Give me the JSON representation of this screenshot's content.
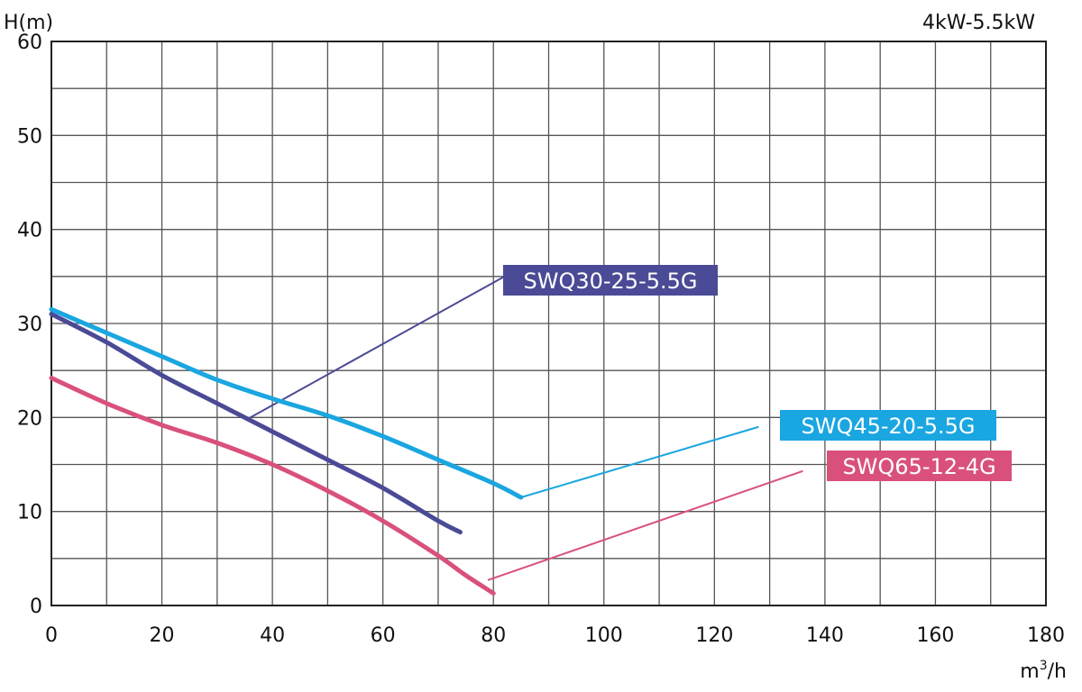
{
  "chart_data": {
    "type": "line",
    "title": "4kW-5.5kW",
    "ylabel": "H(m)",
    "xlabel_base": "m",
    "xlabel_sup": "3",
    "xlabel_tail": "/h",
    "xlim": [
      0,
      180
    ],
    "ylim": [
      0,
      60
    ],
    "x_ticks": [
      0,
      20,
      40,
      60,
      80,
      100,
      120,
      140,
      160,
      180
    ],
    "y_ticks": [
      0,
      10,
      20,
      30,
      40,
      50,
      60
    ],
    "grid": true,
    "series": [
      {
        "name": "SWQ30-25-5.5G",
        "color": "#4a4a96",
        "x": [
          0,
          10,
          20,
          30,
          40,
          50,
          60,
          70,
          74
        ],
        "y": [
          31,
          28,
          24.5,
          21.5,
          18.5,
          15.5,
          12.5,
          9,
          7.8
        ],
        "leader": {
          "from": [
            36,
            20
          ],
          "to": [
            82,
            35
          ]
        }
      },
      {
        "name": "SWQ45-20-5.5G",
        "color": "#1aa6e0",
        "x": [
          0,
          10,
          20,
          30,
          40,
          50,
          60,
          70,
          80,
          85
        ],
        "y": [
          31.5,
          29,
          26.5,
          24,
          22,
          20.2,
          18,
          15.5,
          13,
          11.5
        ],
        "leader": {
          "from": [
            85,
            11.5
          ],
          "to": [
            128,
            19
          ]
        }
      },
      {
        "name": "SWQ65-12-4G",
        "color": "#d9517a",
        "x": [
          0,
          10,
          20,
          30,
          40,
          50,
          60,
          70,
          75,
          80
        ],
        "y": [
          24.2,
          21.5,
          19.2,
          17.3,
          15,
          12.2,
          9,
          5.3,
          3.2,
          1.3
        ],
        "leader": {
          "from": [
            79,
            2.7
          ],
          "to": [
            136,
            14.3
          ]
        }
      }
    ]
  }
}
